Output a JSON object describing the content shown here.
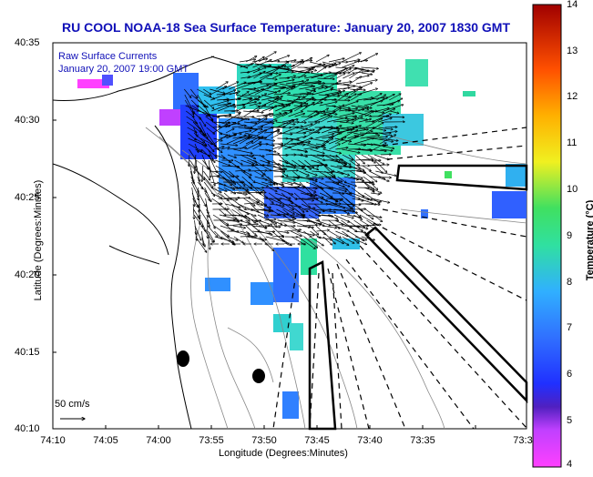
{
  "map": {
    "title": "RU COOL  NOAA-18  Sea Surface Temperature:  January 20, 2007 1830 GMT",
    "currents_label": "Raw Surface Currents",
    "currents_time": "January 20, 2007 19:00 GMT",
    "scale_label": "50 cm/s",
    "xlabel": "Longitude (Degrees:Minutes)",
    "ylabel": "Latitude (Degrees:Minutes)",
    "x_ticks": [
      "74:10",
      "74:05",
      "74:00",
      "73:55",
      "73:50",
      "73:45",
      "73:40",
      "73:35",
      "73:3"
    ],
    "y_ticks": [
      "40:35",
      "40:30",
      "40:25",
      "40:20",
      "40:15",
      "40:10"
    ]
  },
  "colorbar": {
    "label": "Temperature (°C)",
    "ticks": [
      "14",
      "13",
      "12",
      "11",
      "10",
      "9",
      "8",
      "7",
      "6",
      "5",
      "4"
    ],
    "range": [
      4,
      14
    ]
  },
  "colors": {
    "title_blue": "#1010b8",
    "land_line": "#000000",
    "sst_warm": "#30d8a0",
    "sst_cool": "#2050ff"
  }
}
